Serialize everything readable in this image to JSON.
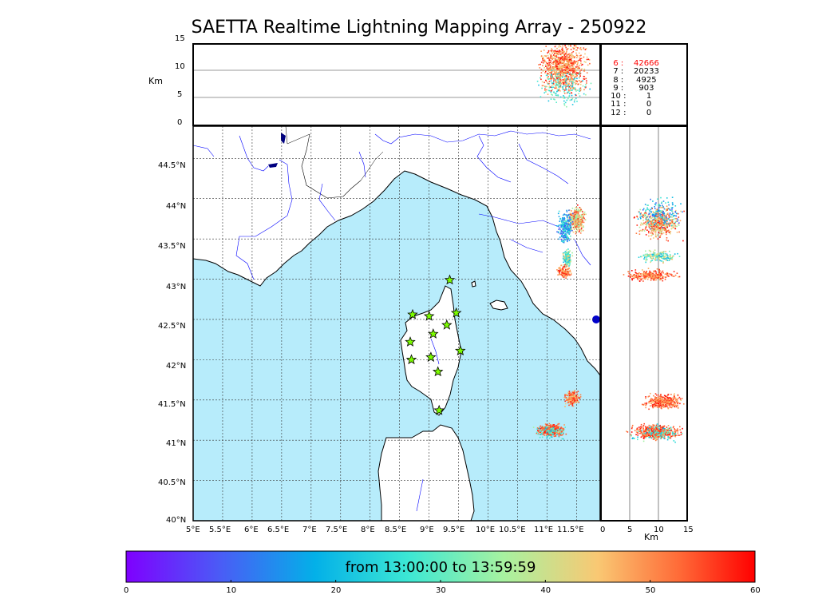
{
  "title": "SAETTA Realtime Lightning Mapping Array - 250922",
  "altitude_axis": {
    "unit_label": "Km",
    "ticks": [
      "15",
      "10",
      "5",
      "0"
    ]
  },
  "latitude_ticks": [
    "44.5°N",
    "44°N",
    "43.5°N",
    "43°N",
    "42.5°N",
    "42°N",
    "41.5°N",
    "41°N",
    "40.5°N",
    "40°N"
  ],
  "longitude_ticks": [
    "5°E",
    "5.5°E",
    "6°E",
    "6.5°E",
    "7°E",
    "7.5°E",
    "8°E",
    "8.5°E",
    "9°E",
    "9.5°E",
    "10°E",
    "10.5°E",
    "11°E",
    "11.5°E"
  ],
  "side_axis": {
    "unit_label": "Km",
    "ticks": [
      "0",
      "5",
      "10",
      "15"
    ]
  },
  "source_counts": [
    {
      "num": "6",
      "sep": ":",
      "count": "42666",
      "highlight": true
    },
    {
      "num": "7",
      "sep": ":",
      "count": "20233",
      "highlight": false
    },
    {
      "num": "8",
      "sep": ":",
      "count": "4925",
      "highlight": false
    },
    {
      "num": "9",
      "sep": ":",
      "count": "903",
      "highlight": false
    },
    {
      "num": "10",
      "sep": ":",
      "count": "1",
      "highlight": false
    },
    {
      "num": "11",
      "sep": ":",
      "count": "0",
      "highlight": false
    },
    {
      "num": "12",
      "sep": ":",
      "count": "0",
      "highlight": false
    }
  ],
  "colorbar": {
    "time_range_label": "from 13:00:00 to 13:59:59",
    "ticks": [
      "0",
      "10",
      "20",
      "30",
      "40",
      "50",
      "60"
    ],
    "min": 0,
    "max": 60
  },
  "colors": {
    "sea": "#b7ecfb",
    "land": "#ffffff",
    "rivers": "#0000ff",
    "station_fill": "#7cfc00",
    "highlight_count": "#ff0000"
  },
  "stations": [
    {
      "lon": 9.35,
      "lat": 42.99
    },
    {
      "lon": 8.72,
      "lat": 42.56
    },
    {
      "lon": 9.0,
      "lat": 42.54
    },
    {
      "lon": 9.46,
      "lat": 42.58
    },
    {
      "lon": 9.3,
      "lat": 42.43
    },
    {
      "lon": 9.07,
      "lat": 42.32
    },
    {
      "lon": 8.68,
      "lat": 42.22
    },
    {
      "lon": 9.53,
      "lat": 42.11
    },
    {
      "lon": 8.7,
      "lat": 42.0
    },
    {
      "lon": 9.03,
      "lat": 42.03
    },
    {
      "lon": 9.15,
      "lat": 41.85
    },
    {
      "lon": 9.17,
      "lat": 41.37
    }
  ]
}
